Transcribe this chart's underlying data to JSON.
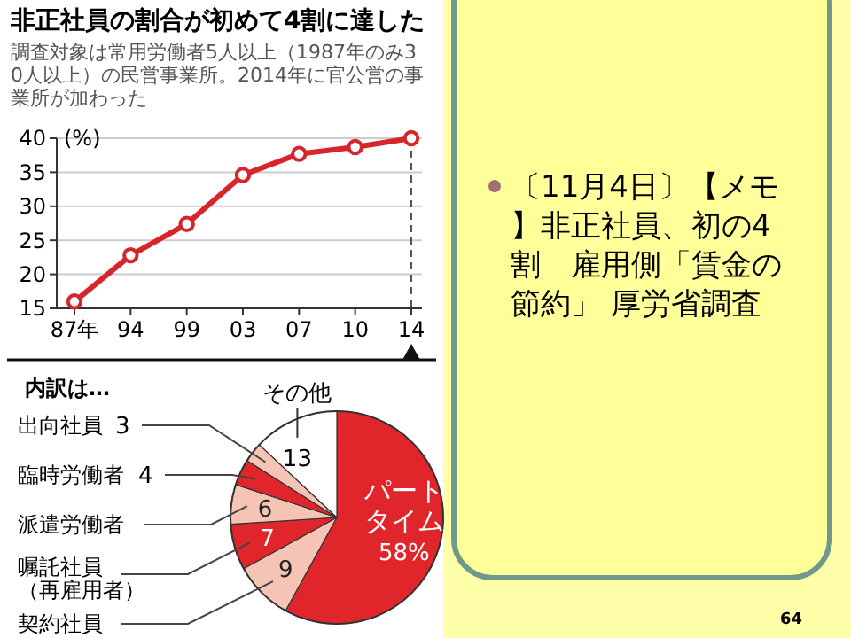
{
  "chart_data": [
    {
      "type": "line",
      "title": "非正社員の割合が初めて4割に達した",
      "subtitle": "調査対象は常用労働者5人以上（1987年のみ30人以上）の民営事業所。2014年に官公営の事業所が加わった",
      "ylabel": "(%)",
      "categories": [
        "87年",
        "94",
        "99",
        "03",
        "07",
        "10",
        "14"
      ],
      "series": [
        {
          "color": "#d7262b",
          "values": [
            16,
            22.8,
            27.4,
            34.6,
            37.7,
            38.7,
            40
          ]
        }
      ],
      "ylim": [
        15,
        40
      ],
      "yticks": [
        15,
        20,
        25,
        30,
        35,
        40
      ],
      "grid": "y",
      "marker": "circle",
      "line_style": "solid",
      "ref_lines": [
        {
          "axis": "x",
          "value": "14",
          "line_style": "dashed",
          "color": "#555555"
        }
      ]
    },
    {
      "type": "pie",
      "title": "内訳は…",
      "categories": [
        "パートタイム",
        "契約社員",
        "嘱託社員（再雇用者）",
        "派遣労働者",
        "臨時労働者",
        "出向社員",
        "その他"
      ],
      "values": [
        58,
        9,
        7,
        6,
        4,
        3,
        13
      ],
      "colors": [
        "#e0262b",
        "#f5c4b4",
        "#e0262b",
        "#f5c4b4",
        "#e0262b",
        "#f5c4b4",
        "#ffffff"
      ],
      "value_labels": [
        "58%",
        "9",
        "7",
        "6",
        "4",
        "3",
        "13"
      ]
    },
    {
      "type": "other",
      "annotations": [
        "〔11月4日〕【メモ】非正社員、初の4割　雇用側「賃金の節約」 厚労省調査",
        "64"
      ]
    }
  ]
}
